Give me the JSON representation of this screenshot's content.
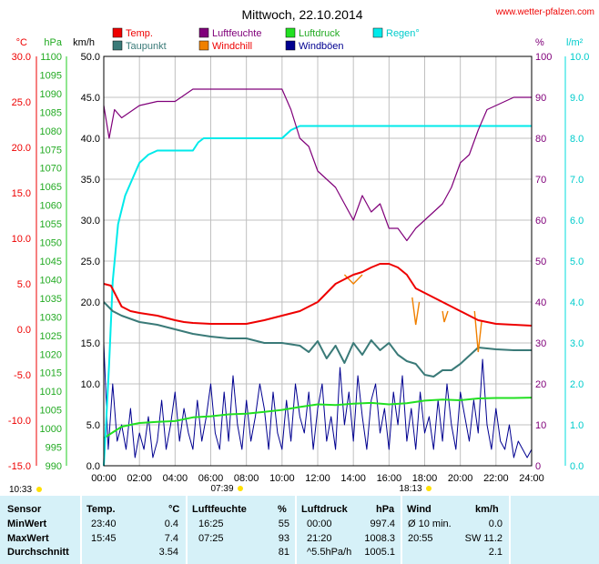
{
  "title": "Mittwoch, 22.10.2014",
  "website": "www.wetter-pfalzen.com",
  "colors": {
    "temp": "#ee0000",
    "dewpoint": "#3a7a78",
    "humidity": "#80007a",
    "windchill": "#f08000",
    "pressure": "#22e022",
    "gusts": "#000090",
    "rain": "#00eaea",
    "grid": "#c0c0c0",
    "stats_bg": "#d6f1f8"
  },
  "legend": [
    "Temp.",
    "Luftfeuchte",
    "Luftdruck",
    "Regen°",
    "Taupunkt",
    "Windchill",
    "Windböen"
  ],
  "sun": {
    "sunrise": "07:39",
    "sunset": "18:13",
    "daylength": "10:33"
  },
  "chart_data": {
    "type": "line",
    "title": "Mittwoch, 22.10.2014",
    "x_unit": "hours",
    "xlim": [
      0,
      24
    ],
    "x_tick_labels": [
      "00:00",
      "02:00",
      "04:00",
      "06:00",
      "08:00",
      "10:00",
      "12:00",
      "14:00",
      "16:00",
      "18:00",
      "20:00",
      "22:00",
      "24:00"
    ],
    "axes": [
      {
        "label": "°C",
        "color": "#ee0000",
        "side": "left",
        "range": [
          -15,
          30
        ],
        "ticks": [
          "30.0",
          "25.0",
          "20.0",
          "15.0",
          "10.0",
          "5.0",
          "0.0",
          "-5.0",
          "-10.0",
          "-15.0"
        ]
      },
      {
        "label": "hPa",
        "color": "#22aa22",
        "side": "left",
        "range": [
          990,
          1100
        ],
        "ticks": [
          "1100",
          "1095",
          "1090",
          "1085",
          "1080",
          "1075",
          "1070",
          "1065",
          "1060",
          "1055",
          "1050",
          "1045",
          "1040",
          "1035",
          "1030",
          "1025",
          "1020",
          "1015",
          "1010",
          "1005",
          "1000",
          "995",
          "990"
        ]
      },
      {
        "label": "km/h",
        "color": "#000000",
        "side": "left",
        "range": [
          0,
          50
        ],
        "ticks": [
          "50.0",
          "45.0",
          "40.0",
          "35.0",
          "30.0",
          "25.0",
          "20.0",
          "15.0",
          "10.0",
          "5.0",
          "0.0"
        ]
      },
      {
        "label": "%",
        "color": "#80007a",
        "side": "right",
        "range": [
          0,
          100
        ],
        "ticks": [
          "100",
          "90",
          "80",
          "70",
          "60",
          "50",
          "40",
          "30",
          "20",
          "10",
          "0"
        ]
      },
      {
        "label": "l/m²",
        "color": "#00cccc",
        "side": "right",
        "range": [
          0,
          10
        ],
        "ticks": [
          "10.0",
          "9.0",
          "8.0",
          "7.0",
          "6.0",
          "5.0",
          "4.0",
          "3.0",
          "2.0",
          "1.0",
          "0.0"
        ]
      }
    ],
    "grid": true,
    "series": [
      {
        "name": "Temp.",
        "axis": "°C",
        "color": "#ee0000",
        "x": [
          0,
          0.4,
          1,
          1.5,
          2,
          3,
          4,
          4.5,
          5,
          6,
          7,
          8,
          9,
          10,
          11,
          11.5,
          12,
          12.5,
          13,
          13.5,
          14,
          14.5,
          15,
          15.5,
          16,
          16.5,
          17,
          17.5,
          18,
          18.5,
          19,
          20,
          21,
          22,
          23,
          24
        ],
        "y": [
          5.0,
          4.8,
          2.5,
          2.0,
          1.8,
          1.5,
          1.0,
          0.8,
          0.7,
          0.6,
          0.6,
          0.6,
          1.0,
          1.5,
          2.0,
          2.5,
          3.0,
          4.0,
          5.0,
          5.5,
          6.0,
          6.3,
          6.8,
          7.2,
          7.2,
          6.8,
          6.0,
          4.5,
          4.0,
          3.5,
          3.0,
          2.0,
          1.0,
          0.6,
          0.5,
          0.4
        ]
      },
      {
        "name": "Taupunkt",
        "axis": "°C",
        "color": "#3a7a78",
        "x": [
          0,
          0.5,
          1,
          2,
          3,
          4,
          5,
          6,
          7,
          8,
          9,
          10,
          11,
          11.5,
          12,
          12.5,
          13,
          13.5,
          14,
          14.5,
          15,
          15.5,
          16,
          16.5,
          17,
          17.5,
          18,
          18.5,
          19,
          19.5,
          20,
          21,
          22,
          23,
          24
        ],
        "y": [
          3.0,
          2.0,
          1.5,
          0.8,
          0.5,
          0.0,
          -0.5,
          -0.8,
          -1.0,
          -1.0,
          -1.5,
          -1.5,
          -1.8,
          -2.5,
          -1.3,
          -3.2,
          -1.8,
          -3.7,
          -1.5,
          -2.8,
          -1.2,
          -2.3,
          -1.5,
          -2.8,
          -3.5,
          -3.8,
          -5.0,
          -5.2,
          -4.5,
          -4.5,
          -3.8,
          -2.0,
          -2.2,
          -2.3,
          -2.3
        ]
      },
      {
        "name": "Luftfeuchte",
        "axis": "%",
        "color": "#80007a",
        "x": [
          0,
          0.3,
          0.6,
          1,
          2,
          3,
          4,
          5,
          6,
          7,
          8,
          9,
          10,
          10.5,
          11,
          11.5,
          12,
          12.5,
          13,
          13.5,
          14,
          14.5,
          15,
          15.5,
          16,
          16.5,
          17,
          17.5,
          18,
          18.5,
          19,
          19.5,
          20,
          20.5,
          21,
          21.5,
          22,
          23,
          24
        ],
        "y": [
          88,
          80,
          87,
          85,
          88,
          89,
          89,
          92,
          92,
          92,
          92,
          92,
          92,
          87,
          80,
          78,
          72,
          70,
          68,
          64,
          60,
          66,
          62,
          64,
          58,
          58,
          55,
          58,
          60,
          62,
          64,
          68,
          74,
          76,
          82,
          87,
          88,
          90,
          90
        ]
      },
      {
        "name": "Luftdruck",
        "axis": "hPa",
        "color": "#22e022",
        "x": [
          0,
          1,
          2,
          3,
          4,
          5,
          6,
          7,
          8,
          9,
          10,
          11,
          12,
          13,
          14,
          15,
          16,
          17,
          18,
          19,
          20,
          21,
          22,
          23,
          24
        ],
        "y": [
          997.4,
          1000.5,
          1001.5,
          1001.8,
          1002.0,
          1003.0,
          1003.3,
          1003.8,
          1004.0,
          1004.5,
          1005.0,
          1005.8,
          1006.5,
          1006.3,
          1006.7,
          1006.9,
          1006.5,
          1006.8,
          1007.5,
          1007.8,
          1007.6,
          1008.1,
          1008.2,
          1008.2,
          1008.3
        ]
      },
      {
        "name": "Windchill",
        "axis": "°C",
        "color": "#f08000",
        "x": [
          13.5,
          14,
          14.5,
          17.3,
          17.5,
          17.7,
          19,
          19.1,
          19.3,
          20.8,
          21,
          21.2
        ],
        "y": [
          6.0,
          5.0,
          6.0,
          3.5,
          0.5,
          3.0,
          2.0,
          0.8,
          2.0,
          2.0,
          -2.5,
          1.0
        ]
      },
      {
        "name": "Windböen",
        "axis": "km/h",
        "color": "#000090",
        "values_note": "irregular gusts",
        "x": [
          0,
          0.25,
          0.5,
          0.75,
          1,
          1.25,
          1.5,
          1.75,
          2,
          2.25,
          2.5,
          2.75,
          3,
          3.25,
          3.5,
          3.75,
          4,
          4.25,
          4.5,
          4.75,
          5,
          5.25,
          5.5,
          5.75,
          6,
          6.25,
          6.5,
          6.75,
          7,
          7.25,
          7.5,
          7.75,
          8,
          8.25,
          8.5,
          8.75,
          9,
          9.25,
          9.5,
          9.75,
          10,
          10.25,
          10.5,
          10.75,
          11,
          11.25,
          11.5,
          11.75,
          12,
          12.25,
          12.5,
          12.75,
          13,
          13.25,
          13.5,
          13.75,
          14,
          14.25,
          14.5,
          14.75,
          15,
          15.25,
          15.5,
          15.75,
          16,
          16.25,
          16.5,
          16.75,
          17,
          17.25,
          17.5,
          17.75,
          18,
          18.25,
          18.5,
          18.75,
          19,
          19.25,
          19.5,
          19.75,
          20,
          20.25,
          20.5,
          20.75,
          21,
          21.25,
          21.5,
          21.75,
          22,
          22.25,
          22.5,
          22.75,
          23,
          23.25,
          23.5,
          23.75,
          24
        ],
        "y": [
          15,
          2,
          10,
          3,
          5,
          2,
          7,
          1,
          4,
          2,
          6,
          1,
          3,
          8,
          2,
          5,
          9,
          3,
          7,
          4,
          2,
          8,
          3,
          6,
          10,
          4,
          2,
          9,
          3,
          11,
          5,
          2,
          8,
          3,
          6,
          10,
          7,
          2,
          9,
          4,
          2,
          8,
          3,
          10,
          6,
          4,
          9,
          2,
          7,
          10,
          3,
          6,
          2,
          12,
          5,
          9,
          3,
          11,
          6,
          2,
          8,
          10,
          4,
          7,
          2,
          9,
          5,
          11,
          3,
          7,
          2,
          9,
          4,
          6,
          2,
          8,
          3,
          10,
          5,
          2,
          9,
          6,
          3,
          8,
          4,
          13,
          5,
          2,
          7,
          3,
          2,
          5,
          1,
          3,
          2,
          1,
          2
        ]
      },
      {
        "name": "Regen°",
        "axis": "l/m²",
        "color": "#00eaea",
        "x": [
          0,
          0.1,
          0.3,
          0.5,
          0.8,
          1.2,
          1.6,
          2.0,
          2.5,
          3,
          4,
          5,
          5.3,
          5.6,
          6,
          7,
          8,
          9,
          10,
          10.5,
          11,
          12,
          13,
          14,
          15,
          16,
          17,
          18,
          19,
          20,
          21,
          22,
          23,
          24
        ],
        "y": [
          0,
          0.8,
          2.5,
          4.5,
          5.9,
          6.6,
          7.0,
          7.4,
          7.6,
          7.7,
          7.7,
          7.7,
          7.9,
          8.0,
          8.0,
          8.0,
          8.0,
          8.0,
          8.0,
          8.2,
          8.3,
          8.3,
          8.3,
          8.3,
          8.3,
          8.3,
          8.3,
          8.3,
          8.3,
          8.3,
          8.3,
          8.3,
          8.3,
          8.3
        ]
      }
    ]
  },
  "stats": {
    "headers": {
      "sensor": "Sensor",
      "temp": "Temp.",
      "temp_unit": "°C",
      "hum": "Luftfeuchte",
      "hum_unit": "%",
      "press": "Luftdruck",
      "press_unit": "hPa",
      "wind": "Wind",
      "wind_unit": "km/h"
    },
    "rows": [
      {
        "label": "MinWert",
        "temp_time": "23:40",
        "temp_val": "0.4",
        "hum_time": "16:25",
        "hum_val": "55",
        "press_time": "00:00",
        "press_val": "997.4",
        "wind_time": "Ø 10 min.",
        "wind_val": "0.0"
      },
      {
        "label": "MaxWert",
        "temp_time": "15:45",
        "temp_val": "7.4",
        "hum_time": "07:25",
        "hum_val": "93",
        "press_time": "21:20",
        "press_val": "1008.3",
        "wind_time": "20:55",
        "wind_val": "SW 11.2"
      },
      {
        "label": "Durchschnitt",
        "temp_time": "",
        "temp_val": "3.54",
        "hum_time": "",
        "hum_val": "81",
        "press_time": "^5.5hPa/h",
        "press_val": "1005.1",
        "wind_time": "",
        "wind_val": "2.1"
      }
    ]
  }
}
